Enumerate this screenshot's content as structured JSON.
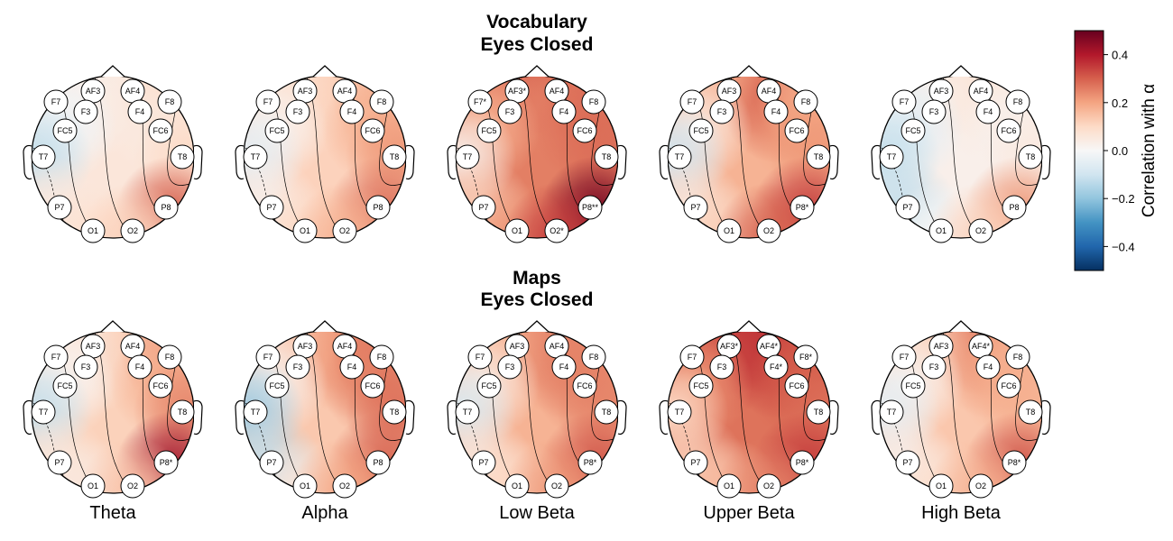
{
  "chart_data": {
    "type": "heatmap",
    "subtype": "eeg-topomap-grid",
    "bands": [
      "Theta",
      "Alpha",
      "Low Beta",
      "Upper Beta",
      "High Beta"
    ],
    "electrodes": [
      "AF3",
      "AF4",
      "F7",
      "F3",
      "F4",
      "F8",
      "FC5",
      "FC6",
      "T7",
      "T8",
      "P7",
      "P8",
      "O1",
      "O2"
    ],
    "rows": [
      {
        "title_line1": "Vocabulary",
        "title_line2": "Eyes Closed",
        "maps": [
          {
            "band": "Theta",
            "values": {
              "AF3": 0.05,
              "AF4": 0.05,
              "F7": 0.03,
              "F3": 0.02,
              "F4": 0.05,
              "F8": 0.1,
              "FC5": -0.02,
              "FC6": 0.05,
              "T7": -0.12,
              "T8": 0.1,
              "P7": 0.05,
              "P8": 0.3,
              "O1": 0.08,
              "O2": 0.12
            },
            "labels": {
              "AF3": "AF3",
              "AF4": "AF4",
              "F7": "F7",
              "F3": "F3",
              "F4": "F4",
              "F8": "F8",
              "FC5": "FC5",
              "FC6": "FC6",
              "T7": "T7",
              "T8": "T8",
              "P7": "P7",
              "P8": "P8",
              "O1": "O1",
              "O2": "O2"
            }
          },
          {
            "band": "Alpha",
            "values": {
              "AF3": 0.1,
              "AF4": 0.12,
              "F7": 0.08,
              "F3": 0.08,
              "F4": 0.12,
              "F8": 0.18,
              "FC5": 0.02,
              "FC6": 0.18,
              "T7": -0.05,
              "T8": 0.22,
              "P7": 0.02,
              "P8": 0.28,
              "O1": 0.1,
              "O2": 0.18
            },
            "labels": {
              "AF3": "AF3",
              "AF4": "AF4",
              "F7": "F7",
              "F3": "F3",
              "F4": "F4",
              "F8": "F8",
              "FC5": "FC5",
              "FC6": "FC6",
              "T7": "T7",
              "T8": "T8",
              "P7": "P7",
              "P8": "P8",
              "O1": "O1",
              "O2": "O2"
            }
          },
          {
            "band": "Low Beta",
            "values": {
              "AF3": 0.32,
              "AF4": 0.3,
              "F7": 0.25,
              "F3": 0.25,
              "F4": 0.25,
              "F8": 0.28,
              "FC5": 0.18,
              "FC6": 0.28,
              "T7": 0.02,
              "T8": 0.28,
              "P7": 0.12,
              "P8": 0.48,
              "O1": 0.22,
              "O2": 0.35
            },
            "labels": {
              "AF3": "AF3*",
              "AF4": "AF4",
              "F7": "F7*",
              "F3": "F3",
              "F4": "F4",
              "F8": "F8",
              "FC5": "FC5",
              "FC6": "FC6",
              "T7": "T7",
              "T8": "T8",
              "P7": "P7",
              "P8": "P8**",
              "O1": "O1",
              "O2": "O2*"
            }
          },
          {
            "band": "Upper Beta",
            "values": {
              "AF3": 0.22,
              "AF4": 0.25,
              "F7": 0.12,
              "F3": 0.18,
              "F4": 0.3,
              "F8": 0.18,
              "FC5": 0.05,
              "FC6": 0.2,
              "T7": -0.1,
              "T8": 0.22,
              "P7": 0.05,
              "P8": 0.35,
              "O1": 0.12,
              "O2": 0.3
            },
            "labels": {
              "AF3": "AF3",
              "AF4": "AF4",
              "F7": "F7",
              "F3": "F3",
              "F4": "F4",
              "F8": "F8",
              "FC5": "FC5",
              "FC6": "FC6",
              "T7": "T7",
              "T8": "T8",
              "P7": "P7",
              "P8": "P8*",
              "O1": "O1",
              "O2": "O2"
            }
          },
          {
            "band": "High Beta",
            "values": {
              "AF3": 0.08,
              "AF4": 0.08,
              "F7": -0.02,
              "F3": 0.02,
              "F4": 0.05,
              "F8": 0.05,
              "FC5": -0.05,
              "FC6": 0.02,
              "T7": -0.12,
              "T8": 0.05,
              "P7": -0.12,
              "P8": 0.22,
              "O1": 0.0,
              "O2": 0.12
            },
            "labels": {
              "AF3": "AF3",
              "AF4": "AF4",
              "F7": "F7",
              "F3": "F3",
              "F4": "F4",
              "F8": "F8",
              "FC5": "FC5",
              "FC6": "FC6",
              "T7": "T7",
              "T8": "T8",
              "P7": "P7",
              "P8": "P8",
              "O1": "O1",
              "O2": "O2"
            }
          }
        ]
      },
      {
        "title_line1": "Maps",
        "title_line2": "Eyes Closed",
        "maps": [
          {
            "band": "Theta",
            "values": {
              "AF3": 0.08,
              "AF4": 0.12,
              "F7": 0.05,
              "F3": 0.05,
              "F4": 0.12,
              "F8": 0.22,
              "FC5": 0.02,
              "FC6": 0.18,
              "T7": -0.12,
              "T8": 0.25,
              "P7": 0.05,
              "P8": 0.42,
              "O1": 0.05,
              "O2": 0.15
            },
            "labels": {
              "AF3": "AF3",
              "AF4": "AF4",
              "F7": "F7",
              "F3": "F3",
              "F4": "F4",
              "F8": "F8",
              "FC5": "FC5",
              "FC6": "FC6",
              "T7": "T7",
              "T8": "T8",
              "P7": "P7",
              "P8": "P8*",
              "O1": "O1",
              "O2": "O2"
            }
          },
          {
            "band": "Alpha",
            "values": {
              "AF3": 0.18,
              "AF4": 0.22,
              "F7": 0.05,
              "F3": 0.15,
              "F4": 0.22,
              "F8": 0.28,
              "FC5": 0.02,
              "FC6": 0.25,
              "T7": -0.18,
              "T8": 0.28,
              "P7": -0.12,
              "P8": 0.3,
              "O1": 0.05,
              "O2": 0.2
            },
            "labels": {
              "AF3": "AF3",
              "AF4": "AF4",
              "F7": "F7",
              "F3": "F3",
              "F4": "F4",
              "F8": "F8",
              "FC5": "FC5",
              "FC6": "FC6",
              "T7": "T7",
              "T8": "T8",
              "P7": "P7",
              "P8": "P8",
              "O1": "O1",
              "O2": "O2"
            }
          },
          {
            "band": "Low Beta",
            "values": {
              "AF3": 0.22,
              "AF4": 0.25,
              "F7": 0.12,
              "F3": 0.18,
              "F4": 0.25,
              "F8": 0.25,
              "FC5": 0.05,
              "FC6": 0.25,
              "T7": -0.08,
              "T8": 0.25,
              "P7": 0.05,
              "P8": 0.32,
              "O1": 0.1,
              "O2": 0.22
            },
            "labels": {
              "AF3": "AF3",
              "AF4": "AF4",
              "F7": "F7",
              "F3": "F3",
              "F4": "F4",
              "F8": "F8",
              "FC5": "FC5",
              "FC6": "FC6",
              "T7": "T7",
              "T8": "T8",
              "P7": "P7",
              "P8": "P8*",
              "O1": "O1",
              "O2": "O2"
            }
          },
          {
            "band": "Upper Beta",
            "values": {
              "AF3": 0.38,
              "AF4": 0.38,
              "F7": 0.3,
              "F3": 0.32,
              "F4": 0.35,
              "F8": 0.32,
              "FC5": 0.22,
              "FC6": 0.3,
              "T7": 0.1,
              "T8": 0.28,
              "P7": 0.12,
              "P8": 0.35,
              "O1": 0.15,
              "O2": 0.25
            },
            "labels": {
              "AF3": "AF3*",
              "AF4": "AF4*",
              "F7": "F7",
              "F3": "F3",
              "F4": "F4*",
              "F8": "F8*",
              "FC5": "FC5",
              "FC6": "FC6",
              "T7": "T7",
              "T8": "T8",
              "P7": "P7",
              "P8": "P8*",
              "O1": "O1",
              "O2": "O2"
            }
          },
          {
            "band": "High Beta",
            "values": {
              "AF3": 0.15,
              "AF4": 0.28,
              "F7": 0.05,
              "F3": 0.12,
              "F4": 0.22,
              "F8": 0.18,
              "FC5": 0.02,
              "FC6": 0.18,
              "T7": -0.05,
              "T8": 0.18,
              "P7": 0.02,
              "P8": 0.32,
              "O1": 0.08,
              "O2": 0.18
            },
            "labels": {
              "AF3": "AF3",
              "AF4": "AF4*",
              "F7": "F7",
              "F3": "F3",
              "F4": "F4",
              "F8": "F8",
              "FC5": "FC5",
              "FC6": "FC6",
              "T7": "T7",
              "T8": "T8",
              "P7": "P7",
              "P8": "P8*",
              "O1": "O1",
              "O2": "O2"
            }
          }
        ]
      }
    ],
    "colorbar": {
      "label": "Correlation with α",
      "range": [
        -0.5,
        0.5
      ],
      "ticks": [
        0.4,
        0.2,
        0.0,
        -0.2,
        -0.4
      ],
      "tick_labels": [
        "0.4",
        "0.2",
        "0.0",
        "−0.2",
        "−0.4"
      ],
      "colormap": "RdBu_r",
      "colors": [
        "#053061",
        "#2166ac",
        "#4393c3",
        "#92c5de",
        "#d1e5f0",
        "#f7f7f7",
        "#fddbc7",
        "#f4a582",
        "#d6604d",
        "#b2182b",
        "#67001f"
      ]
    }
  }
}
